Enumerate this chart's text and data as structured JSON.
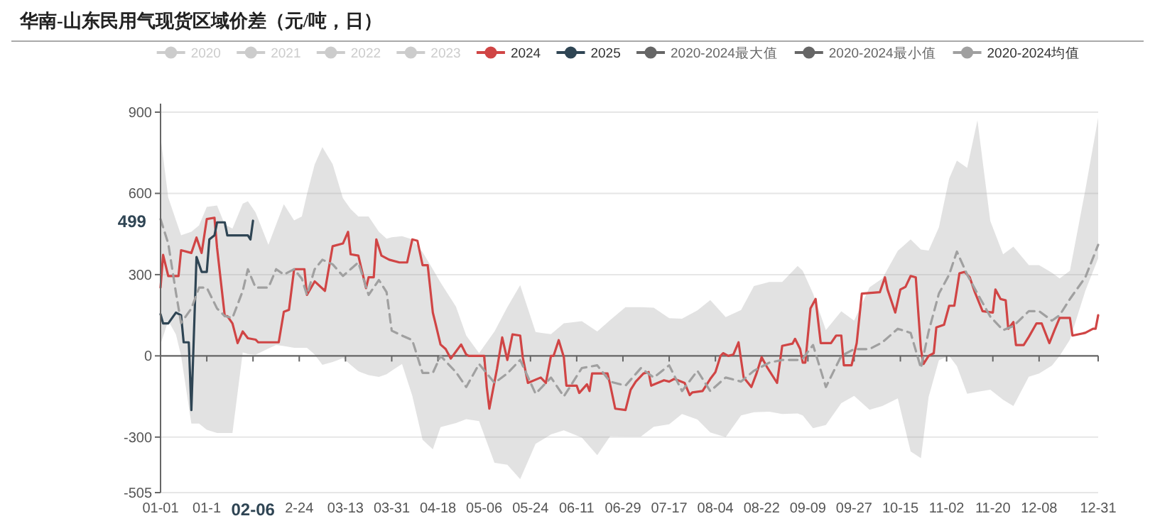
{
  "chart_data": {
    "type": "line",
    "title": "华南-山东民用气现货区域价差（元/吨，日）",
    "legend": "top",
    "grid": "y",
    "marker": "none",
    "xlim": [
      "--01-01",
      "--12-31"
    ],
    "xticks": [
      {
        "value": "--01-01",
        "label": "01-01"
      },
      {
        "value": "--01-19",
        "label": "01-1"
      },
      {
        "value": "--02-06",
        "label": null
      },
      {
        "value": "--02-24",
        "label": "2-24"
      },
      {
        "value": "--03-13",
        "label": "03-13"
      },
      {
        "value": "--03-31",
        "label": "03-31"
      },
      {
        "value": "--04-18",
        "label": "04-18"
      },
      {
        "value": "--05-06",
        "label": "05-06"
      },
      {
        "value": "--05-24",
        "label": "05-24"
      },
      {
        "value": "--06-11",
        "label": "06-11"
      },
      {
        "value": "--06-29",
        "label": "06-29"
      },
      {
        "value": "--07-17",
        "label": "07-17"
      },
      {
        "value": "--08-04",
        "label": "08-04"
      },
      {
        "value": "--08-22",
        "label": "08-22"
      },
      {
        "value": "--09-09",
        "label": "09-09"
      },
      {
        "value": "--09-27",
        "label": "09-27"
      },
      {
        "value": "--10-15",
        "label": "10-15"
      },
      {
        "value": "--11-02",
        "label": "11-02"
      },
      {
        "value": "--11-20",
        "label": "11-20"
      },
      {
        "value": "--12-08",
        "label": "12-08"
      },
      {
        "value": "--12-31",
        "label": "12-31"
      }
    ],
    "ylim": [
      -505,
      900
    ],
    "yticks": [
      -505,
      -300,
      0,
      300,
      600,
      900
    ],
    "annotations": [
      "499",
      "02-06"
    ],
    "series": [
      {
        "name": "2020",
        "color": "#cccccc"
      },
      {
        "name": "2021",
        "color": "#cccccc"
      },
      {
        "name": "2022",
        "color": "#cccccc"
      },
      {
        "name": "2023",
        "color": "#cccccc"
      },
      {
        "name": "2024",
        "color": "#d04545",
        "x": [
          "--01-01",
          "--01-02",
          "--01-04",
          "--01-08",
          "--01-09",
          "--01-13",
          "--01-15",
          "--01-17",
          "--01-19",
          "--01-22",
          "--01-23",
          "--01-26",
          "--01-27",
          "--01-29",
          "--01-31",
          "--02-02",
          "--02-04",
          "--02-07",
          "--02-08",
          "--02-16",
          "--02-18",
          "--02-20",
          "--02-22",
          "--02-26",
          "--02-27",
          "--03-01",
          "--03-05",
          "--03-08",
          "--03-12",
          "--03-14",
          "--03-15",
          "--03-18",
          "--03-21",
          "--03-22",
          "--03-24",
          "--03-25",
          "--03-27",
          "--03-30",
          "--04-03",
          "--04-06",
          "--04-08",
          "--04-10",
          "--04-12",
          "--04-14",
          "--04-16",
          "--04-17",
          "--04-19",
          "--04-21",
          "--04-23",
          "--04-25",
          "--04-27",
          "--04-29",
          "--04-30",
          "--05-06",
          "--05-07",
          "--05-08",
          "--05-11",
          "--05-13",
          "--05-15",
          "--05-17",
          "--05-20",
          "--05-21",
          "--05-23",
          "--05-28",
          "--05-30",
          "--06-01",
          "--06-02",
          "--06-04",
          "--06-06",
          "--06-07",
          "--06-11",
          "--06-12",
          "--06-15",
          "--06-16",
          "--06-17",
          "--06-23",
          "--06-24",
          "--06-26",
          "--06-30",
          "--07-02",
          "--07-04",
          "--07-07",
          "--07-09",
          "--07-10",
          "--07-15",
          "--07-17",
          "--07-19",
          "--07-23",
          "--07-25",
          "--07-26",
          "--07-30",
          "--08-02",
          "--08-04",
          "--08-06",
          "--08-07",
          "--08-09",
          "--08-11",
          "--08-13",
          "--08-15",
          "--08-18",
          "--08-20",
          "--08-22",
          "--08-24",
          "--08-28",
          "--08-30",
          "--09-03",
          "--09-04",
          "--09-06",
          "--09-07",
          "--09-08",
          "--09-10",
          "--09-12",
          "--09-14",
          "--09-18",
          "--09-20",
          "--09-22",
          "--09-23",
          "--09-26",
          "--09-28",
          "--09-30",
          "--10-07",
          "--10-09",
          "--10-10",
          "--10-13",
          "--10-15",
          "--10-17",
          "--10-19",
          "--10-21",
          "--10-23",
          "--10-24",
          "--10-26",
          "--10-28",
          "--10-29",
          "--11-01",
          "--11-03",
          "--11-05",
          "--11-07",
          "--11-09",
          "--11-11",
          "--11-13",
          "--11-16",
          "--11-20",
          "--11-21",
          "--11-23",
          "--11-25",
          "--11-26",
          "--11-28",
          "--11-29",
          "--12-02",
          "--12-04",
          "--12-07",
          "--12-09",
          "--12-12",
          "--12-14",
          "--12-16",
          "--12-20",
          "--12-21",
          "--12-26",
          "--12-29",
          "--12-30",
          "--12-31"
        ],
        "values": [
          252,
          373,
          295,
          295,
          390,
          380,
          437,
          380,
          505,
          510,
          400,
          147,
          147,
          120,
          47,
          90,
          65,
          60,
          50,
          50,
          163,
          170,
          320,
          320,
          225,
          275,
          240,
          405,
          415,
          458,
          375,
          370,
          250,
          290,
          290,
          430,
          370,
          355,
          345,
          345,
          430,
          425,
          335,
          335,
          160,
          121,
          42,
          25,
          -10,
          16,
          42,
          5,
          0,
          0,
          -116,
          -195,
          -47,
          68,
          -15,
          79,
          75,
          -5,
          -100,
          -80,
          -100,
          0,
          0,
          58,
          -5,
          -110,
          -110,
          -137,
          -105,
          -130,
          -65,
          -65,
          -105,
          -195,
          -200,
          -125,
          -95,
          -65,
          -60,
          -110,
          -90,
          -95,
          -85,
          -100,
          -145,
          -135,
          -130,
          -85,
          -60,
          0,
          10,
          0,
          5,
          50,
          -80,
          -115,
          -65,
          -5,
          -40,
          -100,
          37,
          45,
          63,
          25,
          -25,
          -25,
          175,
          210,
          47,
          47,
          75,
          75,
          -35,
          -35,
          47,
          230,
          235,
          290,
          245,
          160,
          245,
          255,
          295,
          290,
          25,
          -30,
          0,
          10,
          105,
          115,
          185,
          185,
          305,
          310,
          290,
          235,
          165,
          160,
          245,
          210,
          205,
          100,
          125,
          40,
          40,
          70,
          120,
          120,
          47,
          95,
          140,
          140,
          75,
          85,
          100,
          100,
          150
        ]
      },
      {
        "name": "2025",
        "color": "#2f4554",
        "x": [
          "--01-01",
          "--01-02",
          "--01-04",
          "--01-07",
          "--01-09",
          "--01-10",
          "--01-12",
          "--01-13",
          "--01-15",
          "--01-17",
          "--01-19",
          "--01-20",
          "--01-22",
          "--01-23",
          "--01-26",
          "--01-27",
          "--02-04",
          "--02-05",
          "--02-06"
        ],
        "values": [
          154,
          120,
          120,
          160,
          150,
          50,
          50,
          -200,
          365,
          310,
          310,
          430,
          445,
          493,
          493,
          445,
          445,
          430,
          499
        ]
      },
      {
        "name": "2020-2024最大值",
        "color": "#666666"
      },
      {
        "name": "2020-2024最小值",
        "color": "#666666"
      },
      {
        "name": "2020-2024均值",
        "color": "#a0a0a0",
        "line_style": "dashed",
        "x": [
          "--01-01",
          "--01-04",
          "--01-07",
          "--01-09",
          "--01-13",
          "--01-16",
          "--01-19",
          "--01-23",
          "--01-26",
          "--01-29",
          "--02-02",
          "--02-04",
          "--02-07",
          "--02-12",
          "--02-15",
          "--02-18",
          "--02-22",
          "--02-25",
          "--02-27",
          "--03-01",
          "--03-04",
          "--03-08",
          "--03-12",
          "--03-15",
          "--03-18",
          "--03-22",
          "--03-26",
          "--03-29",
          "--03-31",
          "--04-04",
          "--04-08",
          "--04-12",
          "--04-16",
          "--04-19",
          "--04-25",
          "--04-29",
          "--05-04",
          "--05-10",
          "--05-15",
          "--05-20",
          "--05-26",
          "--06-01",
          "--06-06",
          "--06-13",
          "--06-19",
          "--06-24",
          "--06-30",
          "--07-06",
          "--07-11",
          "--07-17",
          "--07-22",
          "--07-28",
          "--08-02",
          "--08-08",
          "--08-14",
          "--08-19",
          "--08-25",
          "--08-30",
          "--09-05",
          "--09-07",
          "--09-11",
          "--09-16",
          "--09-22",
          "--09-27",
          "--10-03",
          "--10-08",
          "--10-14",
          "--10-19",
          "--10-23",
          "--10-26",
          "--10-30",
          "--11-03",
          "--11-06",
          "--11-10",
          "--11-14",
          "--11-19",
          "--11-24",
          "--11-28",
          "--12-04",
          "--12-08",
          "--12-13",
          "--12-16",
          "--12-20",
          "--12-26",
          "--12-31"
        ],
        "values": [
          505,
          415,
          233,
          121,
          175,
          252,
          252,
          175,
          147,
          140,
          240,
          320,
          252,
          252,
          320,
          300,
          320,
          285,
          225,
          320,
          355,
          338,
          295,
          320,
          345,
          225,
          280,
          235,
          93,
          75,
          58,
          -63,
          -63,
          0,
          -60,
          -115,
          -30,
          -100,
          -65,
          -15,
          -140,
          -80,
          -150,
          -45,
          -35,
          -95,
          -110,
          -45,
          -80,
          -35,
          -130,
          -55,
          -130,
          -80,
          -95,
          -55,
          -25,
          -15,
          -15,
          -10,
          40,
          -115,
          0,
          25,
          25,
          50,
          100,
          85,
          -45,
          90,
          230,
          300,
          385,
          300,
          230,
          145,
          95,
          110,
          165,
          165,
          130,
          150,
          210,
          290,
          410
        ],
        "upper": [
          810,
          585,
          501,
          445,
          458,
          482,
          550,
          555,
          485,
          470,
          562,
          571,
          530,
          410,
          485,
          560,
          500,
          515,
          597,
          707,
          771,
          708,
          582,
          542,
          515,
          515,
          458,
          433,
          438,
          442,
          430,
          383,
          320,
          271,
          182,
          75,
          10,
          90,
          180,
          261,
          88,
          80,
          120,
          128,
          90,
          132,
          180,
          180,
          178,
          139,
          137,
          168,
          206,
          143,
          169,
          258,
          273,
          273,
          332,
          314,
          230,
          95,
          165,
          130,
          253,
          286,
          388,
          430,
          393,
          389,
          475,
          655,
          721,
          694,
          870,
          498,
          375,
          403,
          335,
          335,
          307,
          286,
          314,
          613,
          880
        ],
        "lower": [
          42,
          130,
          79,
          0,
          -250,
          -250,
          -273,
          -285,
          -285,
          -285,
          13,
          7,
          4,
          27,
          40,
          36,
          30,
          30,
          30,
          5,
          -33,
          -23,
          -8,
          -33,
          -57,
          -71,
          -78,
          -68,
          -55,
          -30,
          -147,
          -310,
          -345,
          -263,
          -248,
          -234,
          -241,
          -395,
          -402,
          -455,
          -325,
          -290,
          -275,
          -302,
          -367,
          -297,
          -298,
          -298,
          -262,
          -253,
          -215,
          -235,
          -283,
          -300,
          -220,
          -208,
          -206,
          -215,
          -213,
          -220,
          -267,
          -255,
          -175,
          -148,
          -199,
          -185,
          -157,
          -353,
          -378,
          -152,
          -16,
          0,
          -38,
          -140,
          -133,
          -125,
          -162,
          -185,
          -77,
          -65,
          -36,
          0,
          60,
          240,
          360
        ]
      }
    ]
  }
}
